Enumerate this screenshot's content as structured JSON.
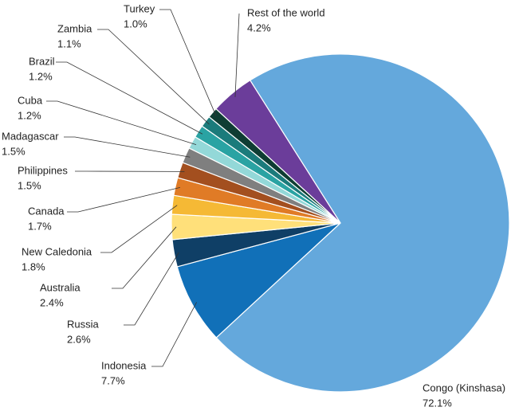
{
  "chart_data": {
    "type": "pie",
    "categories": [
      "Congo (Kinshasa)",
      "Indonesia",
      "Russia",
      "Australia",
      "New Caledonia",
      "Canada",
      "Philippines",
      "Madagascar",
      "Cuba",
      "Brazil",
      "Zambia",
      "Turkey",
      "Rest of the world"
    ],
    "values": [
      72.1,
      7.7,
      2.6,
      2.4,
      1.8,
      1.7,
      1.5,
      1.5,
      1.2,
      1.2,
      1.1,
      1.0,
      4.2
    ],
    "value_labels": [
      "72.1%",
      "7.7%",
      "2.6%",
      "2.4%",
      "1.8%",
      "1.7%",
      "1.5%",
      "1.5%",
      "1.2%",
      "1.2%",
      "1.1%",
      "1.0%",
      "4.2%"
    ],
    "colors": [
      "#64a8dc",
      "#1170b8",
      "#0f3f66",
      "#ffe07a",
      "#f5b935",
      "#e07b26",
      "#a34f1f",
      "#7f7f7f",
      "#93d8d8",
      "#2aa3a3",
      "#1b7b7b",
      "#0f3d33",
      "#6b3d9a"
    ]
  }
}
